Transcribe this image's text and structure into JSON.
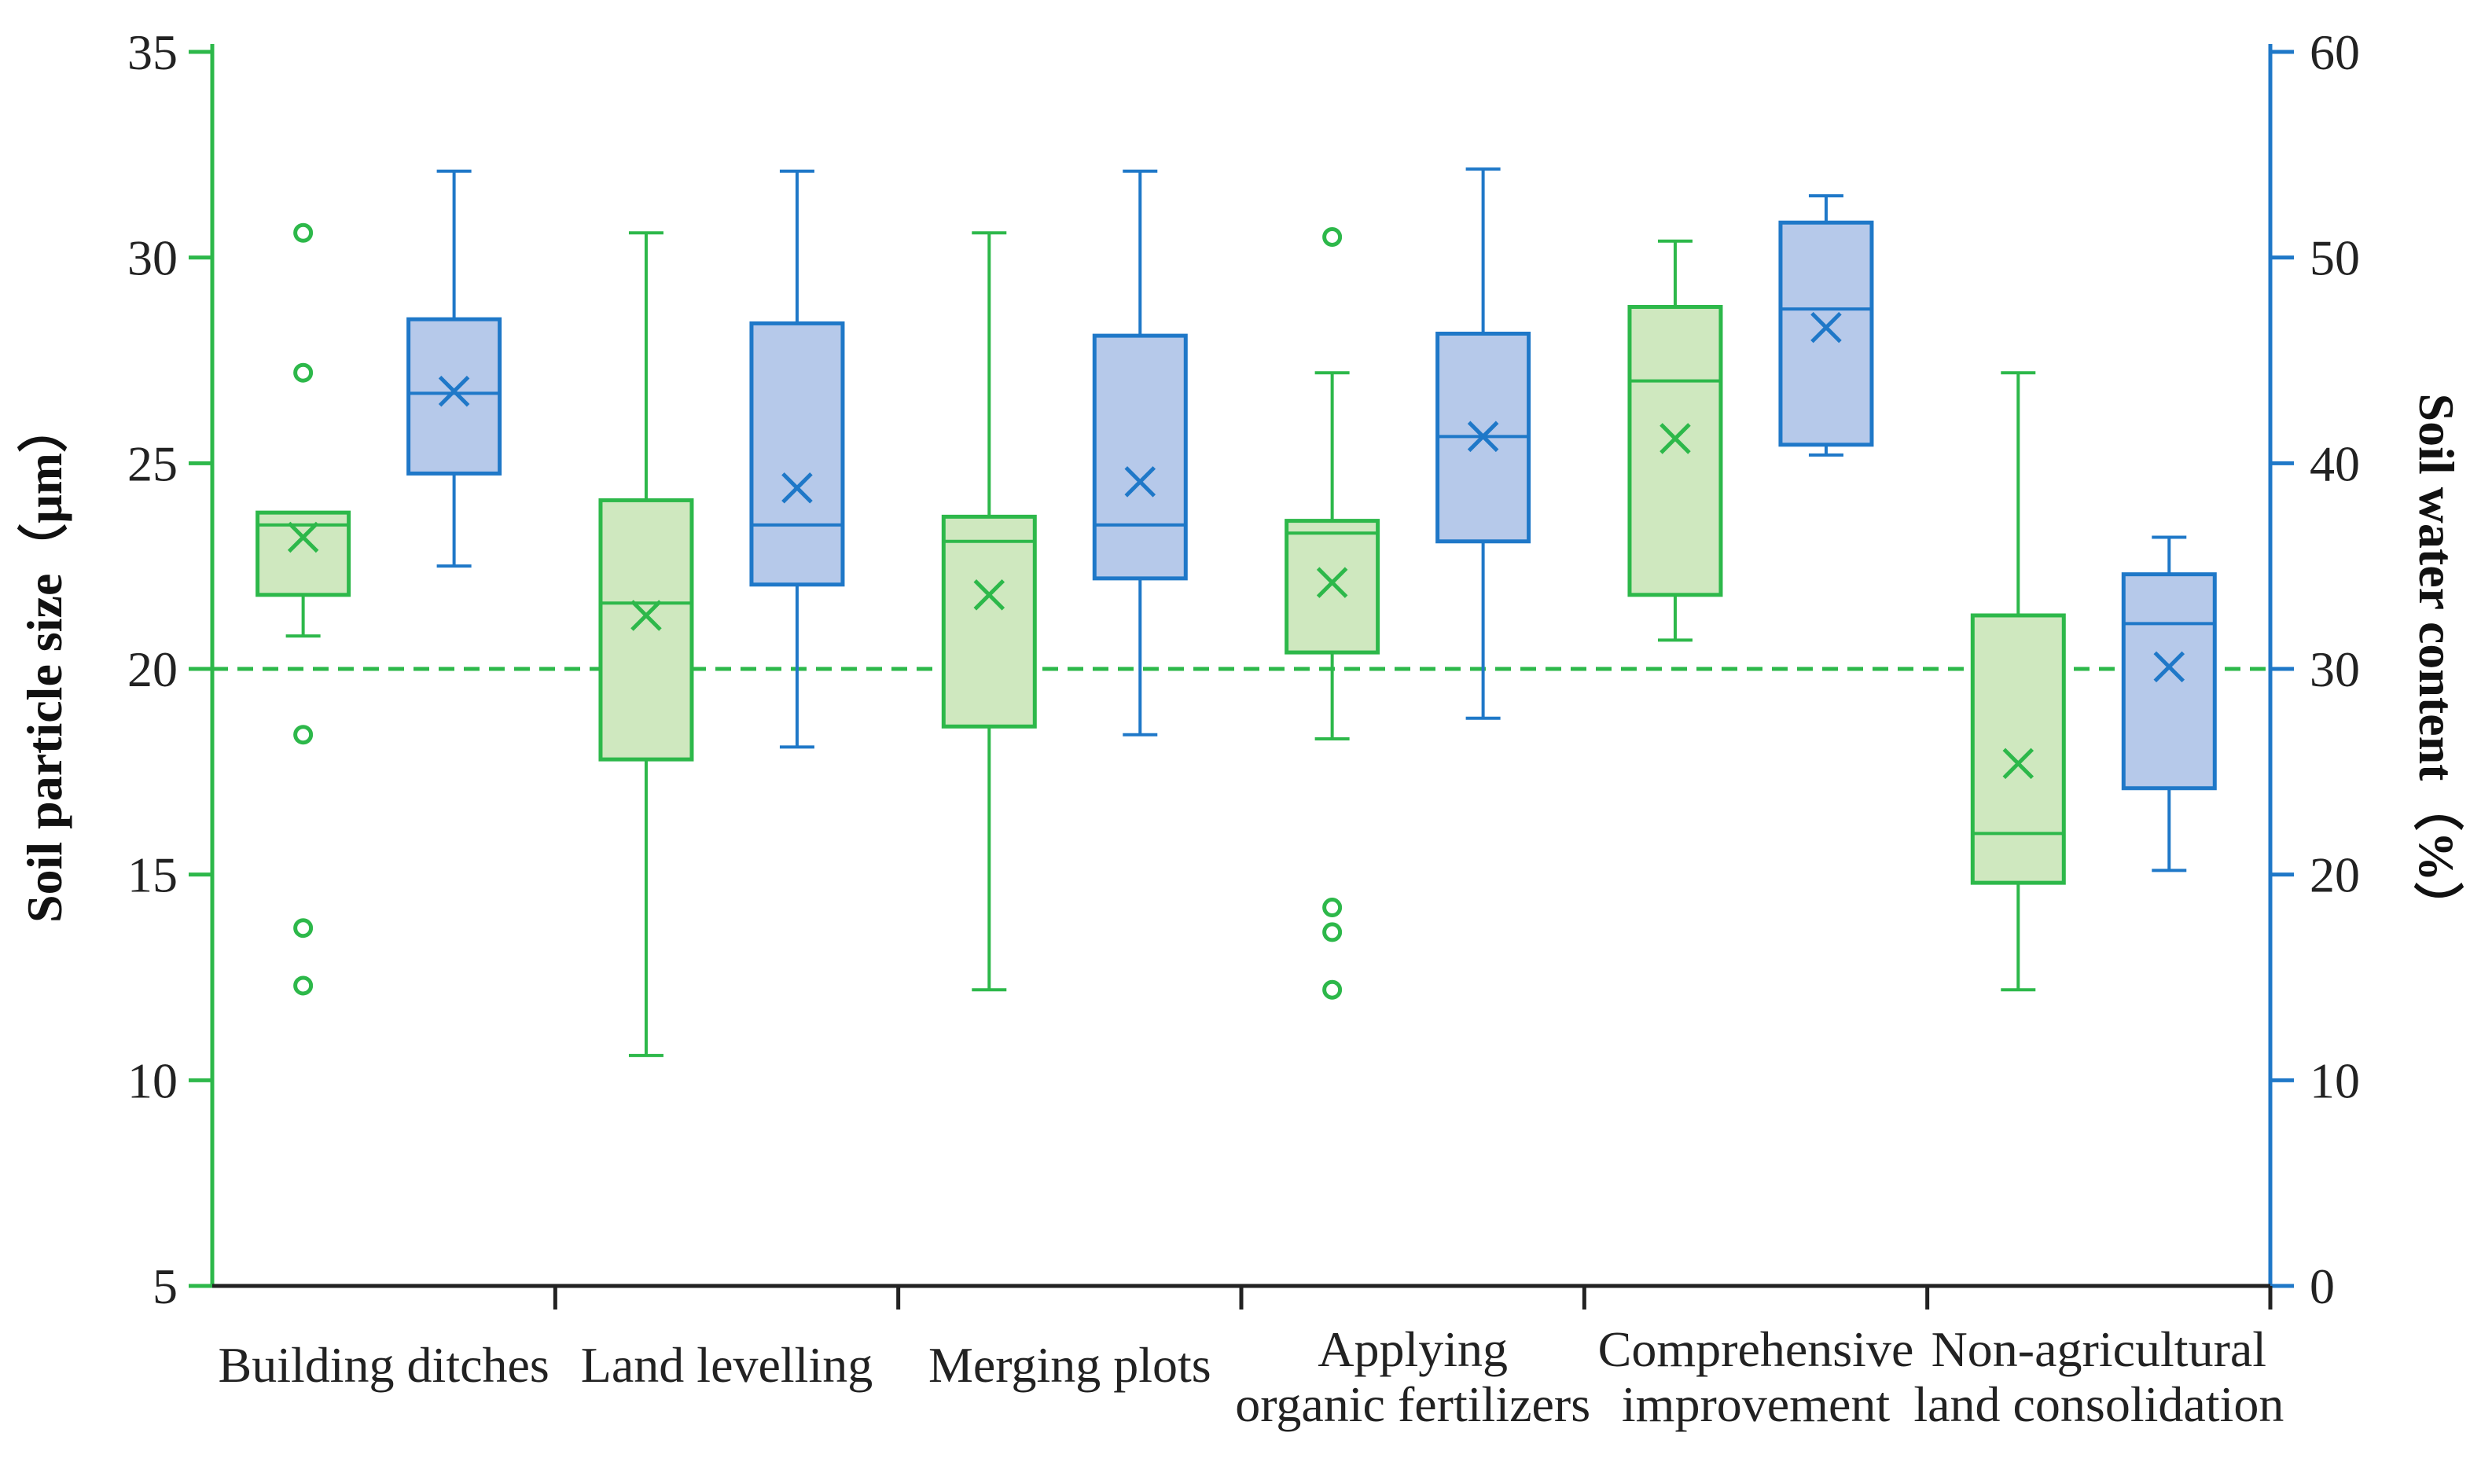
{
  "chart_data": {
    "type": "boxplot",
    "categories": [
      [
        "Building  ditches"
      ],
      [
        "Land levelling"
      ],
      [
        "Merging plots"
      ],
      [
        "Applying",
        "organic fertilizers"
      ],
      [
        "Comprehensive",
        "improvement"
      ],
      [
        "Non-agricultural",
        "land consolidation"
      ]
    ],
    "y_left": {
      "label": "Soil particle size（μm）",
      "min": 5,
      "max": 35,
      "ticks": [
        5,
        10,
        15,
        20,
        25,
        30,
        35
      ]
    },
    "y_right": {
      "label": "Soil water content（%）",
      "min": 0,
      "max": 60,
      "ticks": [
        0,
        10,
        20,
        30,
        40,
        50,
        60
      ]
    },
    "reference_line": {
      "axis": "left",
      "value": 20,
      "style": "dashed"
    },
    "colors": {
      "particle_stroke": "#2db84a",
      "particle_fill": "#cfe8bf",
      "water_stroke": "#1f78c8",
      "water_fill": "#b6c9ea",
      "left_axis": "#2db84a",
      "right_axis": "#1f78c8"
    },
    "series": [
      {
        "name": "Soil particle size",
        "axis": "left",
        "boxes": [
          {
            "min": 20.8,
            "q1": 21.8,
            "median": 23.5,
            "q3": 23.8,
            "max": 23.8,
            "mean": 23.2,
            "outliers": [
              30.6,
              27.2,
              18.4,
              13.7,
              12.3
            ]
          },
          {
            "min": 10.6,
            "q1": 17.8,
            "median": 21.6,
            "q3": 24.1,
            "max": 30.6,
            "mean": 21.3,
            "outliers": []
          },
          {
            "min": 12.2,
            "q1": 18.6,
            "median": 23.1,
            "q3": 23.7,
            "max": 30.6,
            "mean": 21.8,
            "outliers": []
          },
          {
            "min": 18.3,
            "q1": 20.4,
            "median": 23.3,
            "q3": 23.6,
            "max": 27.2,
            "mean": 22.1,
            "outliers": [
              30.5,
              14.2,
              13.6,
              12.2
            ]
          },
          {
            "min": 20.7,
            "q1": 21.8,
            "median": 27.0,
            "q3": 28.8,
            "max": 30.4,
            "mean": 25.6,
            "outliers": []
          },
          {
            "min": 12.2,
            "q1": 14.8,
            "median": 16.0,
            "q3": 21.3,
            "max": 27.2,
            "mean": 17.7,
            "outliers": []
          }
        ]
      },
      {
        "name": "Soil water content",
        "axis": "right",
        "boxes": [
          {
            "min": 35.0,
            "q1": 39.5,
            "median": 43.4,
            "q3": 47.0,
            "max": 54.2,
            "mean": 43.5,
            "outliers": []
          },
          {
            "min": 26.2,
            "q1": 34.1,
            "median": 37.0,
            "q3": 46.8,
            "max": 54.2,
            "mean": 38.8,
            "outliers": []
          },
          {
            "min": 26.8,
            "q1": 34.4,
            "median": 37.0,
            "q3": 46.2,
            "max": 54.2,
            "mean": 39.1,
            "outliers": []
          },
          {
            "min": 27.6,
            "q1": 36.2,
            "median": 41.3,
            "q3": 46.3,
            "max": 54.3,
            "mean": 41.3,
            "outliers": []
          },
          {
            "min": 40.4,
            "q1": 40.9,
            "median": 47.5,
            "q3": 51.7,
            "max": 53.0,
            "mean": 46.6,
            "outliers": []
          },
          {
            "min": 20.2,
            "q1": 24.2,
            "median": 32.2,
            "q3": 34.6,
            "max": 36.4,
            "mean": 30.1,
            "outliers": []
          }
        ]
      }
    ]
  }
}
